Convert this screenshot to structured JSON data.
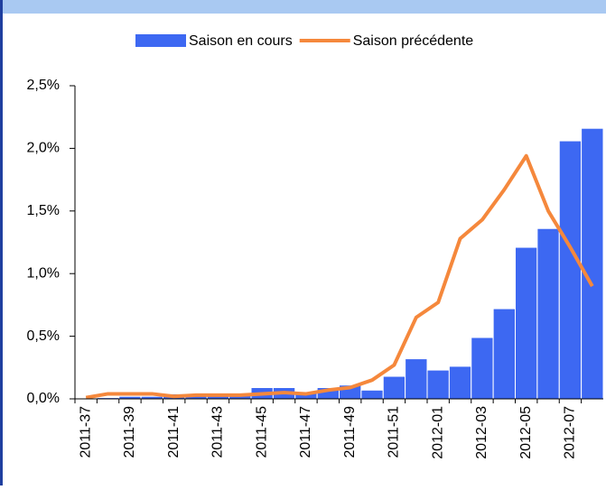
{
  "chart_data": {
    "type": "bar_line",
    "categories": [
      "2011-37",
      null,
      "2011-39",
      null,
      "2011-41",
      null,
      "2011-43",
      null,
      "2011-45",
      null,
      "2011-47",
      null,
      "2011-49",
      null,
      "2011-51",
      null,
      "2012-01",
      null,
      "2012-03",
      null,
      "2012-05",
      null,
      "2012-07",
      null
    ],
    "series": [
      {
        "name": "Saison en cours",
        "type": "bar",
        "color": "#3d68f2",
        "values": [
          0,
          0.01,
          0.02,
          0.02,
          0.04,
          0.03,
          0.03,
          0.03,
          0.09,
          0.09,
          0.05,
          0.09,
          0.11,
          0.07,
          0.18,
          0.32,
          0.23,
          0.26,
          0.49,
          0.72,
          1.21,
          1.36,
          2.06,
          2.16
        ]
      },
      {
        "name": "Saison précédente",
        "type": "line",
        "color": "#f5883c",
        "values": [
          0.01,
          0.04,
          0.04,
          0.04,
          0.02,
          0.03,
          0.03,
          0.03,
          0.04,
          0.05,
          0.04,
          0.07,
          0.09,
          0.15,
          0.27,
          0.65,
          0.77,
          1.28,
          1.43,
          1.67,
          1.94,
          1.5,
          1.21,
          0.9
        ]
      }
    ],
    "ylim": [
      0,
      2.5
    ],
    "yticks": [
      {
        "value": 0,
        "label": "0,0%"
      },
      {
        "value": 0.5,
        "label": "0,5%"
      },
      {
        "value": 1,
        "label": "1,0%"
      },
      {
        "value": 1.5,
        "label": "1,5%"
      },
      {
        "value": 2,
        "label": "2,0%"
      },
      {
        "value": 2.5,
        "label": "2,5%"
      }
    ],
    "legend": "top"
  }
}
